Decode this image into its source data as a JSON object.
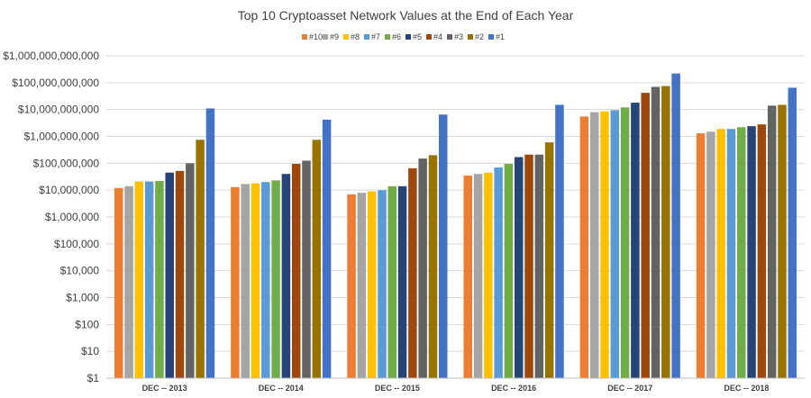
{
  "chart_data": {
    "type": "bar",
    "title": "Top 10 Cryptoasset Network Values at the End of Each Year",
    "xlabel": "",
    "ylabel": "",
    "yscale": "log",
    "ylim": [
      1,
      1000000000000
    ],
    "ytick_values": [
      1,
      10,
      100,
      1000,
      10000,
      100000,
      1000000,
      10000000,
      100000000,
      1000000000,
      10000000000,
      100000000000,
      1000000000000
    ],
    "ytick_labels": [
      "$1",
      "$10",
      "$100",
      "$1,000",
      "$10,000",
      "$100,000",
      "$1,000,000",
      "$10,000,000",
      "$100,000,000",
      "$1,000,000,000",
      "$10,000,000,000",
      "$100,000,000,000",
      "$1,000,000,000,000"
    ],
    "grid": true,
    "legend_position": "top-center",
    "categories": [
      "DEC -- 2013",
      "DEC -- 2014",
      "DEC -- 2015",
      "DEC -- 2016",
      "DEC -- 2017",
      "DEC -- 2018"
    ],
    "series": [
      {
        "name": "#10",
        "color": "#ED7D31",
        "values": [
          12000000,
          13000000,
          7000000,
          35000000,
          5500000000,
          1300000000
        ]
      },
      {
        "name": "#9",
        "color": "#A5A5A5",
        "values": [
          14000000,
          17000000,
          8000000,
          40000000,
          8000000000,
          1500000000
        ]
      },
      {
        "name": "#8",
        "color": "#FFC000",
        "values": [
          21000000,
          18000000,
          9000000,
          45000000,
          8500000000,
          1900000000
        ]
      },
      {
        "name": "#7",
        "color": "#5B9BD5",
        "values": [
          21000000,
          20000000,
          10000000,
          70000000,
          9500000000,
          1900000000
        ]
      },
      {
        "name": "#6",
        "color": "#70AD47",
        "values": [
          22000000,
          23000000,
          14000000,
          95000000,
          12000000000,
          2200000000
        ]
      },
      {
        "name": "#5",
        "color": "#264478",
        "values": [
          45000000,
          40000000,
          14000000,
          170000000,
          18000000000,
          2400000000
        ]
      },
      {
        "name": "#4",
        "color": "#9E480E",
        "values": [
          52000000,
          95000000,
          65000000,
          210000000,
          42000000000,
          2800000000
        ]
      },
      {
        "name": "#3",
        "color": "#636363",
        "values": [
          100000000,
          125000000,
          150000000,
          210000000,
          70000000000,
          14000000000
        ]
      },
      {
        "name": "#2",
        "color": "#997300",
        "values": [
          750000000,
          750000000,
          200000000,
          600000000,
          75000000000,
          15000000000
        ]
      },
      {
        "name": "#1",
        "color": "#4472C4",
        "values": [
          11000000000,
          4200000000,
          6500000000,
          15000000000,
          220000000000,
          65000000000
        ]
      }
    ]
  }
}
